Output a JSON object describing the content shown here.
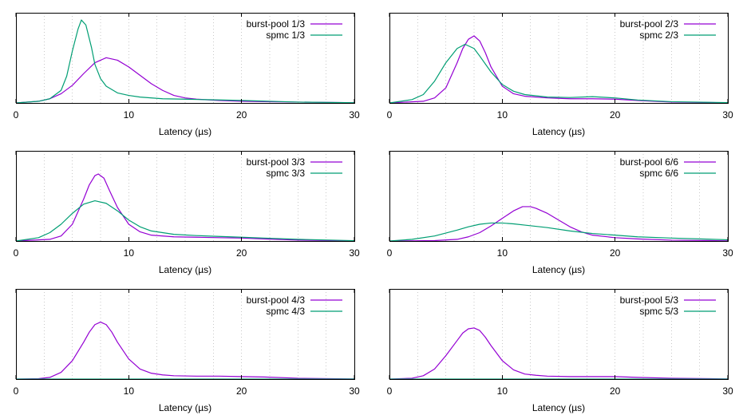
{
  "chart_data": [
    {
      "type": "line",
      "xlabel": "Latency (µs)",
      "xlim": [
        0,
        30
      ],
      "xticks": [
        0,
        10,
        20,
        30
      ],
      "ylim": [
        0,
        1
      ],
      "grid": "vertical dotted, every 2.5 µs",
      "legend": "top-right",
      "series": [
        {
          "name": "burst-pool 1/3",
          "color": "#9400d3",
          "x": [
            0,
            2,
            3,
            4,
            5,
            6,
            7,
            8,
            9,
            10,
            11,
            12,
            13,
            14,
            15,
            16,
            18,
            20,
            22,
            25,
            30
          ],
          "y": [
            0,
            0.02,
            0.05,
            0.11,
            0.21,
            0.35,
            0.48,
            0.54,
            0.51,
            0.43,
            0.33,
            0.23,
            0.15,
            0.09,
            0.06,
            0.045,
            0.03,
            0.02,
            0.015,
            0.01,
            0.003
          ]
        },
        {
          "name": "spmc 1/3",
          "color": "#009e73",
          "x": [
            0,
            2,
            3,
            4,
            4.5,
            5,
            5.5,
            5.8,
            6.2,
            6.7,
            7,
            7.5,
            8,
            9,
            10,
            11,
            13,
            15,
            20,
            25,
            30
          ],
          "y": [
            0,
            0.02,
            0.05,
            0.15,
            0.32,
            0.62,
            0.88,
            0.99,
            0.93,
            0.66,
            0.46,
            0.29,
            0.2,
            0.12,
            0.09,
            0.07,
            0.05,
            0.045,
            0.03,
            0.01,
            0.003
          ]
        }
      ]
    },
    {
      "type": "line",
      "xlabel": "Latency (µs)",
      "xlim": [
        0,
        30
      ],
      "xticks": [
        0,
        10,
        20,
        30
      ],
      "ylim": [
        0,
        1
      ],
      "grid": "vertical dotted, every 2.5 µs",
      "legend": "top-right",
      "series": [
        {
          "name": "burst-pool 2/3",
          "color": "#9400d3",
          "x": [
            0,
            3,
            4,
            5,
            6,
            6.5,
            7,
            7.5,
            8,
            8.5,
            9,
            10,
            11,
            12,
            14,
            16,
            18,
            20,
            22,
            25,
            30
          ],
          "y": [
            0,
            0.02,
            0.06,
            0.18,
            0.48,
            0.65,
            0.76,
            0.8,
            0.74,
            0.6,
            0.43,
            0.2,
            0.11,
            0.08,
            0.06,
            0.05,
            0.05,
            0.045,
            0.03,
            0.01,
            0.002
          ]
        },
        {
          "name": "spmc 2/3",
          "color": "#009e73",
          "x": [
            0,
            2,
            3,
            4,
            5,
            6,
            6.7,
            7.5,
            8,
            9,
            10,
            11,
            12,
            14,
            16,
            18,
            20,
            22,
            25,
            30
          ],
          "y": [
            0,
            0.04,
            0.1,
            0.26,
            0.48,
            0.65,
            0.7,
            0.65,
            0.56,
            0.37,
            0.22,
            0.14,
            0.1,
            0.07,
            0.065,
            0.075,
            0.06,
            0.035,
            0.015,
            0.004
          ]
        }
      ]
    },
    {
      "type": "line",
      "xlabel": "Latency (µs)",
      "xlim": [
        0,
        30
      ],
      "xticks": [
        0,
        10,
        20,
        30
      ],
      "ylim": [
        0,
        1
      ],
      "grid": "vertical dotted, every 2.5 µs",
      "legend": "top-right",
      "series": [
        {
          "name": "burst-pool 3/3",
          "color": "#9400d3",
          "x": [
            0,
            3,
            4,
            5,
            6,
            6.5,
            7,
            7.3,
            7.8,
            8.3,
            9,
            10,
            11,
            12,
            14,
            16,
            18,
            20,
            22,
            25,
            30
          ],
          "y": [
            0,
            0.02,
            0.06,
            0.2,
            0.5,
            0.67,
            0.78,
            0.8,
            0.75,
            0.6,
            0.4,
            0.2,
            0.11,
            0.07,
            0.05,
            0.045,
            0.04,
            0.035,
            0.025,
            0.01,
            0.002
          ]
        },
        {
          "name": "spmc 3/3",
          "color": "#009e73",
          "x": [
            0,
            2,
            3,
            4,
            5,
            6,
            7,
            8,
            9,
            10,
            11,
            12,
            14,
            16,
            18,
            20,
            22,
            25,
            30
          ],
          "y": [
            0,
            0.04,
            0.1,
            0.2,
            0.33,
            0.44,
            0.48,
            0.45,
            0.36,
            0.25,
            0.17,
            0.12,
            0.08,
            0.065,
            0.055,
            0.045,
            0.035,
            0.02,
            0.004
          ]
        }
      ]
    },
    {
      "type": "line",
      "xlabel": "Latency (µs)",
      "xlim": [
        0,
        30
      ],
      "xticks": [
        0,
        10,
        20,
        30
      ],
      "ylim": [
        0,
        1
      ],
      "grid": "vertical dotted, every 2.5 µs",
      "legend": "top-right",
      "series": [
        {
          "name": "burst-pool 6/6",
          "color": "#9400d3",
          "x": [
            0,
            4,
            6,
            7,
            8,
            9,
            10,
            11,
            11.8,
            12.5,
            13,
            14,
            15,
            16,
            17,
            18,
            20,
            22,
            25,
            30
          ],
          "y": [
            0,
            0.005,
            0.02,
            0.05,
            0.1,
            0.18,
            0.27,
            0.36,
            0.41,
            0.41,
            0.39,
            0.33,
            0.25,
            0.17,
            0.11,
            0.07,
            0.04,
            0.025,
            0.01,
            0.002
          ]
        },
        {
          "name": "spmc 6/6",
          "color": "#009e73",
          "x": [
            0,
            2,
            4,
            6,
            7,
            8,
            9,
            10,
            11,
            12,
            14,
            16,
            18,
            20,
            22,
            25,
            30
          ],
          "y": [
            0,
            0.02,
            0.06,
            0.13,
            0.17,
            0.2,
            0.215,
            0.215,
            0.205,
            0.19,
            0.16,
            0.12,
            0.09,
            0.07,
            0.05,
            0.035,
            0.015
          ]
        }
      ]
    },
    {
      "type": "line",
      "xlabel": "Latency (µs)",
      "xlim": [
        0,
        30
      ],
      "xticks": [
        0,
        10,
        20,
        30
      ],
      "ylim": [
        0,
        1
      ],
      "grid": "vertical dotted, every 2.5 µs",
      "legend": "top-right",
      "series": [
        {
          "name": "burst-pool 4/3",
          "color": "#9400d3",
          "x": [
            0,
            2,
            3,
            4,
            5,
            6,
            6.5,
            7,
            7.5,
            8,
            8.5,
            9,
            10,
            11,
            12,
            13,
            14,
            16,
            18,
            20,
            22,
            25,
            30
          ],
          "y": [
            0,
            0.005,
            0.02,
            0.08,
            0.22,
            0.44,
            0.56,
            0.65,
            0.68,
            0.65,
            0.56,
            0.44,
            0.24,
            0.12,
            0.07,
            0.05,
            0.04,
            0.035,
            0.035,
            0.03,
            0.025,
            0.01,
            0.002
          ]
        },
        {
          "name": "spmc 4/3",
          "color": "#009e73",
          "x": [
            0,
            30
          ],
          "y": [
            0,
            0
          ]
        }
      ]
    },
    {
      "type": "line",
      "xlabel": "Latency (µs)",
      "xlim": [
        0,
        30
      ],
      "xticks": [
        0,
        10,
        20,
        30
      ],
      "ylim": [
        0,
        1
      ],
      "grid": "vertical dotted, every 2.5 µs",
      "legend": "top-right",
      "series": [
        {
          "name": "burst-pool 5/3",
          "color": "#9400d3",
          "x": [
            0,
            2,
            3,
            4,
            5,
            6,
            6.5,
            7,
            7.5,
            8,
            8.5,
            9,
            10,
            11,
            12,
            13,
            14,
            16,
            18,
            20,
            22,
            25,
            30
          ],
          "y": [
            0,
            0.01,
            0.04,
            0.12,
            0.28,
            0.46,
            0.55,
            0.6,
            0.61,
            0.58,
            0.5,
            0.4,
            0.22,
            0.11,
            0.06,
            0.045,
            0.035,
            0.03,
            0.03,
            0.03,
            0.02,
            0.01,
            0.002
          ]
        },
        {
          "name": "spmc 5/3",
          "color": "#009e73",
          "x": [
            0,
            30
          ],
          "y": [
            0,
            0
          ]
        }
      ]
    }
  ]
}
